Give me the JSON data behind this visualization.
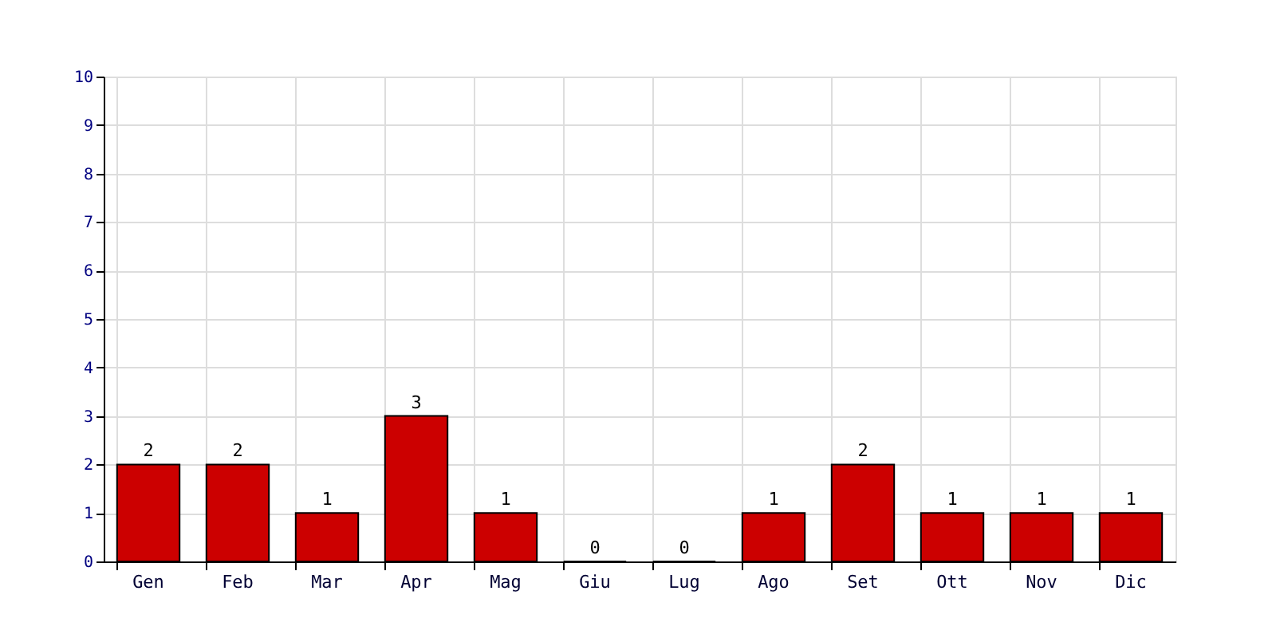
{
  "chart_data": {
    "type": "bar",
    "categories": [
      "Gen",
      "Feb",
      "Mar",
      "Apr",
      "Mag",
      "Giu",
      "Lug",
      "Ago",
      "Set",
      "Ott",
      "Nov",
      "Dic"
    ],
    "values": [
      2,
      2,
      1,
      3,
      1,
      0,
      0,
      1,
      2,
      1,
      1,
      1
    ],
    "color": "#cc0000",
    "ylim": [
      0,
      10
    ],
    "yticks": [
      0,
      1,
      2,
      3,
      4,
      5,
      6,
      7,
      8,
      9,
      10
    ],
    "grid": true,
    "data_labels": true
  }
}
